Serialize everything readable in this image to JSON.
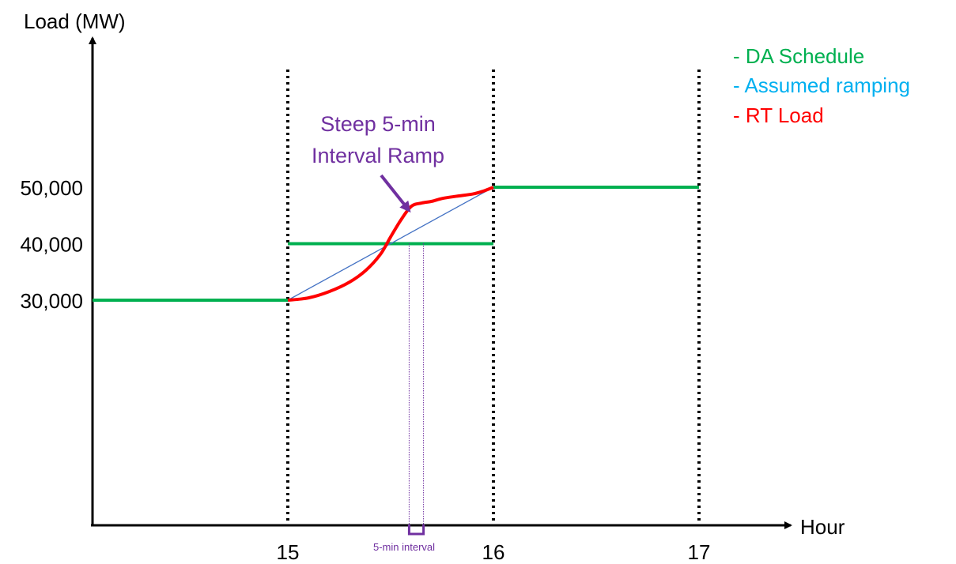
{
  "chart_data": {
    "type": "line",
    "ylabel": "Load (MW)",
    "xlabel": "Hour",
    "x_ticks": [
      15,
      16,
      17
    ],
    "y_ticks": [
      {
        "value": 30000,
        "label": "30,000"
      },
      {
        "value": 40000,
        "label": "40,000"
      },
      {
        "value": 50000,
        "label": "50,000"
      }
    ],
    "x_tick_labels": [
      "15",
      "16",
      "17"
    ],
    "series": [
      {
        "name": "- DA Schedule",
        "color": "#00B050",
        "segments": [
          [
            [
              14.05,
              30000
            ],
            [
              15,
              30000
            ]
          ],
          [
            [
              15,
              40000
            ],
            [
              16,
              40000
            ]
          ],
          [
            [
              16,
              50000
            ],
            [
              17,
              50000
            ]
          ]
        ]
      },
      {
        "name": "- Assumed ramping",
        "color": "#00B0F0",
        "line_color": "#4472C4",
        "points": [
          [
            15,
            30000
          ],
          [
            16,
            50000
          ]
        ]
      },
      {
        "name": "- RT Load",
        "color": "#FF0000",
        "points": [
          [
            15.0,
            30000
          ],
          [
            15.1,
            30400
          ],
          [
            15.2,
            31500
          ],
          [
            15.3,
            33200
          ],
          [
            15.38,
            35300
          ],
          [
            15.45,
            38100
          ],
          [
            15.5,
            41200
          ],
          [
            15.55,
            44200
          ],
          [
            15.6,
            46600
          ],
          [
            15.65,
            47200
          ],
          [
            15.7,
            47500
          ],
          [
            15.75,
            48000
          ],
          [
            15.82,
            48400
          ],
          [
            15.9,
            48800
          ],
          [
            15.95,
            49300
          ],
          [
            16.0,
            50000
          ]
        ]
      }
    ],
    "annotations": [
      {
        "text_lines": [
          "Steep 5-min",
          "Interval Ramp"
        ],
        "color": "#7030A0"
      },
      {
        "text": "5-min interval",
        "color": "#7030A0",
        "x_range": [
          15.59,
          15.66
        ]
      }
    ],
    "grid": "vertical dotted lines at 15, 16, 17",
    "legend": "top-right"
  }
}
